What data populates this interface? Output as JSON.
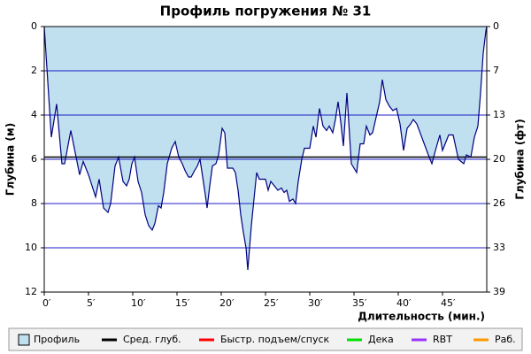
{
  "chart_data": {
    "type": "area",
    "title": "Профиль погружения № 31",
    "x_label": "Длительность (мин.)",
    "y_label": "Глубина (м)",
    "y2_label": "Глубина (фт)",
    "xlim": [
      0,
      50
    ],
    "ylim": [
      12,
      0
    ],
    "y2lim": [
      39.37,
      0
    ],
    "inverted_y": true,
    "grid": true,
    "grid_color": "#1c1cc8",
    "legend_position": "bottom",
    "xticks": [
      {
        "value": 0,
        "label": "0′"
      },
      {
        "value": 5,
        "label": "5′"
      },
      {
        "value": 10,
        "label": "10′"
      },
      {
        "value": 15,
        "label": "15′"
      },
      {
        "value": 20,
        "label": "20′"
      },
      {
        "value": 25,
        "label": "25′"
      },
      {
        "value": 30,
        "label": "30′"
      },
      {
        "value": 35,
        "label": "35′"
      },
      {
        "value": 40,
        "label": "40′"
      },
      {
        "value": 45,
        "label": "45′"
      }
    ],
    "yticks": [
      0,
      2,
      4,
      6,
      8,
      10,
      12
    ],
    "y2ticks": [
      0,
      {
        "value": 6.56,
        "label": "7"
      },
      {
        "value": 13.12,
        "label": "13"
      },
      {
        "value": 19.69,
        "label": "20"
      },
      {
        "value": 26.25,
        "label": "26"
      },
      {
        "value": 32.81,
        "label": "33"
      },
      {
        "value": 39.37,
        "label": "39"
      }
    ],
    "series": [
      {
        "color": "#c0e0f0",
        "line_color": "#000080",
        "x": [
          0,
          0.8,
          1.4,
          2,
          2.3,
          3,
          4,
          4.4,
          5,
          5.8,
          6.2,
          6.7,
          7.2,
          7.5,
          8,
          8.4,
          8.9,
          9.3,
          9.6,
          9.9,
          10.2,
          10.6,
          11,
          11.4,
          11.8,
          12.2,
          12.5,
          12.9,
          13.2,
          13.5,
          13.9,
          14.4,
          14.8,
          15.2,
          15.6,
          15.9,
          16.3,
          16.6,
          17,
          17.3,
          17.6,
          17.9,
          18.2,
          18.4,
          18.7,
          19,
          19.4,
          19.7,
          20.1,
          20.4,
          20.7,
          21.3,
          21.6,
          21.9,
          22.2,
          22.5,
          22.8,
          23,
          23.4,
          24,
          24.3,
          25,
          25.3,
          25.6,
          26,
          26.4,
          26.8,
          27.1,
          27.4,
          27.7,
          28.1,
          28.4,
          28.7,
          29.1,
          29.4,
          30,
          30.4,
          30.7,
          31.1,
          31.5,
          31.9,
          32.2,
          32.6,
          32.9,
          33.2,
          33.5,
          33.8,
          34.2,
          34.7,
          35.3,
          35.7,
          36.1,
          36.4,
          36.8,
          37.1,
          37.5,
          37.9,
          38.2,
          38.6,
          39,
          39.4,
          39.8,
          40.2,
          40.6,
          41,
          41.4,
          41.7,
          42.1,
          43.4,
          43.8,
          44.2,
          44.7,
          45,
          45.7,
          46.2,
          46.8,
          47.4,
          47.7,
          48.2,
          48.6,
          49,
          49.3,
          49.6,
          49.9,
          50
        ],
        "values": [
          0,
          5,
          3.5,
          6.2,
          6.2,
          4.7,
          6.7,
          6.1,
          6.7,
          7.7,
          6.9,
          8.2,
          8.4,
          8.0,
          6.3,
          5.9,
          7.0,
          7.2,
          6.9,
          6.2,
          5.9,
          7.0,
          7.5,
          8.5,
          9.0,
          9.2,
          8.9,
          8.1,
          8.2,
          7.5,
          6.2,
          5.5,
          5.2,
          5.9,
          6.2,
          6.5,
          6.8,
          6.8,
          6.5,
          6.3,
          6.0,
          6.8,
          7.6,
          8.2,
          7.2,
          6.3,
          6.2,
          5.8,
          4.6,
          4.8,
          6.4,
          6.4,
          6.6,
          7.4,
          8.5,
          9.3,
          10.0,
          11.0,
          9.0,
          6.6,
          6.9,
          6.9,
          7.4,
          7.0,
          7.2,
          7.4,
          7.3,
          7.5,
          7.4,
          7.9,
          7.8,
          8.0,
          7.0,
          6.0,
          5.5,
          5.5,
          4.5,
          5.0,
          3.7,
          4.5,
          4.7,
          4.5,
          4.8,
          4.2,
          3.4,
          4.3,
          5.4,
          3.0,
          6.2,
          6.6,
          5.3,
          5.3,
          4.5,
          4.9,
          4.8,
          4.1,
          3.4,
          2.4,
          3.3,
          3.6,
          3.8,
          3.7,
          4.4,
          5.6,
          4.6,
          4.4,
          4.2,
          4.4,
          5.8,
          6.2,
          5.6,
          4.9,
          5.6,
          4.9,
          4.9,
          6.0,
          6.2,
          5.8,
          5.9,
          5.0,
          4.5,
          3.0,
          1.2,
          0.2,
          0
        ]
      }
    ],
    "average_depth": {
      "value": 5.9,
      "color": "#000000"
    },
    "legend": [
      {
        "name": "Профиль",
        "color": "#c0e0f0",
        "kind": "box"
      },
      {
        "name": "Сред. глуб.",
        "color": "#000000",
        "kind": "line"
      },
      {
        "name": "Быстр. подъем/спуск",
        "color": "#ff0000",
        "kind": "line"
      },
      {
        "name": "Дека",
        "color": "#00e000",
        "kind": "line"
      },
      {
        "name": "RBT",
        "color": "#9933ff",
        "kind": "line"
      },
      {
        "name": "Раб.",
        "color": "#ff9900",
        "kind": "line"
      }
    ]
  }
}
